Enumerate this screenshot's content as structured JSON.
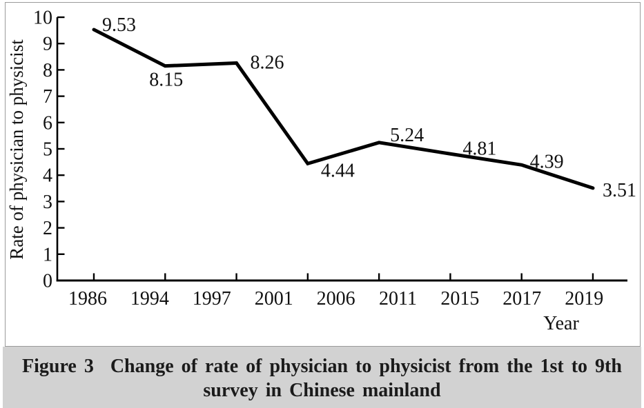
{
  "caption": {
    "label": "Figure 3",
    "line1": "Change of rate of physician to physicist from the 1st to 9th",
    "line2": "survey in Chinese mainland",
    "band_color": "#d2d2d2",
    "text_color": "#1b1b1b"
  },
  "chart_data": {
    "type": "line",
    "title": "",
    "xlabel": "Year",
    "ylabel": "Rate of physician to physicist",
    "ylim": [
      0,
      10
    ],
    "y_ticks": [
      0,
      1,
      2,
      3,
      4,
      5,
      6,
      7,
      8,
      9,
      10
    ],
    "x_tick_labels": [
      "1986",
      "1994",
      "1997",
      "2001",
      "2006",
      "2011",
      "2015",
      "2017",
      "2019"
    ],
    "grid": false,
    "legend": "none",
    "line_color": "#000000",
    "axis_color": "#000000",
    "note": "8 labeled data points plotted on 8 axis tick marks; 9 year labels shown along the axis",
    "series": [
      {
        "name": "Rate of physician to physicist",
        "values": [
          9.53,
          8.15,
          8.26,
          4.44,
          5.24,
          4.81,
          4.39,
          3.51
        ],
        "point_labels": [
          {
            "text": "9.53",
            "dx": 12,
            "dy": 2
          },
          {
            "text": "8.15",
            "dx": -23,
            "dy": 29
          },
          {
            "text": "8.26",
            "dx": 20,
            "dy": 8
          },
          {
            "text": "4.44",
            "dx": 19,
            "dy": 19
          },
          {
            "text": "5.24",
            "dx": 16,
            "dy": -2
          },
          {
            "text": "4.81",
            "dx": 18,
            "dy": 1
          },
          {
            "text": "4.39",
            "dx": 12,
            "dy": 4
          },
          {
            "text": "3.51",
            "dx": 14,
            "dy": 12
          }
        ]
      }
    ]
  }
}
